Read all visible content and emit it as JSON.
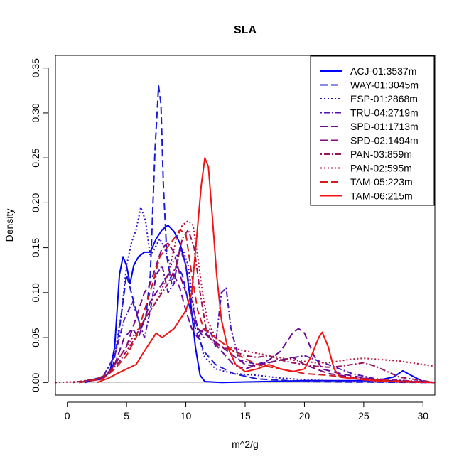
{
  "chart_data": {
    "type": "line",
    "title": "SLA",
    "xlabel": "m^2/g",
    "ylabel": "Density",
    "xlim": [
      -1,
      31
    ],
    "ylim": [
      -0.014,
      0.364
    ],
    "xticks": [
      "0",
      "5",
      "10",
      "15",
      "20",
      "25",
      "30"
    ],
    "yticks": [
      "0.00",
      "0.05",
      "0.10",
      "0.15",
      "0.20",
      "0.25",
      "0.30",
      "0.35"
    ],
    "legend_position": "top-right",
    "grid": false,
    "series": [
      {
        "name": "ACJ-01:3537m",
        "color": "#0000FF",
        "dash": "solid",
        "points": [
          [
            1,
            0
          ],
          [
            3,
            0.004
          ],
          [
            3.6,
            0.012
          ],
          [
            4.0,
            0.04
          ],
          [
            4.4,
            0.12
          ],
          [
            4.7,
            0.14
          ],
          [
            5.0,
            0.13
          ],
          [
            5.3,
            0.11
          ],
          [
            5.6,
            0.13
          ],
          [
            6.0,
            0.14
          ],
          [
            6.5,
            0.145
          ],
          [
            7.0,
            0.145
          ],
          [
            7.5,
            0.16
          ],
          [
            8.0,
            0.17
          ],
          [
            8.5,
            0.175
          ],
          [
            9.0,
            0.168
          ],
          [
            9.5,
            0.155
          ],
          [
            10.0,
            0.13
          ],
          [
            10.4,
            0.09
          ],
          [
            10.8,
            0.04
          ],
          [
            11.2,
            0.008
          ],
          [
            11.6,
            0.001
          ],
          [
            13,
            0.0
          ],
          [
            20,
            0.002
          ],
          [
            26,
            0.002
          ],
          [
            27.5,
            0.006
          ],
          [
            28.3,
            0.013
          ],
          [
            29,
            0.008
          ],
          [
            30,
            0.001
          ],
          [
            31,
            0
          ]
        ]
      },
      {
        "name": "WAY-01:3045m",
        "color": "#1A1ADD",
        "dash": "longdash",
        "points": [
          [
            1.5,
            0
          ],
          [
            3,
            0.005
          ],
          [
            3.8,
            0.015
          ],
          [
            4.3,
            0.05
          ],
          [
            4.7,
            0.09
          ],
          [
            5.0,
            0.12
          ],
          [
            5.4,
            0.1
          ],
          [
            5.8,
            0.08
          ],
          [
            6.2,
            0.06
          ],
          [
            6.6,
            0.07
          ],
          [
            7.0,
            0.12
          ],
          [
            7.4,
            0.26
          ],
          [
            7.7,
            0.33
          ],
          [
            7.9,
            0.31
          ],
          [
            8.1,
            0.22
          ],
          [
            8.4,
            0.14
          ],
          [
            8.8,
            0.11
          ],
          [
            9.2,
            0.13
          ],
          [
            9.7,
            0.12
          ],
          [
            10.2,
            0.09
          ],
          [
            10.8,
            0.06
          ],
          [
            11.5,
            0.035
          ],
          [
            12.5,
            0.02
          ],
          [
            14,
            0.01
          ],
          [
            16,
            0.004
          ],
          [
            20,
            0.001
          ],
          [
            24,
            0.0005
          ],
          [
            31,
            0
          ]
        ]
      },
      {
        "name": "ESP-01:2868m",
        "color": "#2E0FC8",
        "dash": "dotted",
        "points": [
          [
            1.5,
            0
          ],
          [
            3,
            0.006
          ],
          [
            4.0,
            0.03
          ],
          [
            4.6,
            0.08
          ],
          [
            5.0,
            0.13
          ],
          [
            5.4,
            0.155
          ],
          [
            5.8,
            0.17
          ],
          [
            6.2,
            0.195
          ],
          [
            6.6,
            0.18
          ],
          [
            7.0,
            0.14
          ],
          [
            7.4,
            0.15
          ],
          [
            7.8,
            0.16
          ],
          [
            8.2,
            0.15
          ],
          [
            8.7,
            0.13
          ],
          [
            9.2,
            0.14
          ],
          [
            9.7,
            0.15
          ],
          [
            10.2,
            0.13
          ],
          [
            10.8,
            0.07
          ],
          [
            11.5,
            0.03
          ],
          [
            12.5,
            0.015
          ],
          [
            14,
            0.01
          ],
          [
            16,
            0.008
          ],
          [
            18,
            0.005
          ],
          [
            20,
            0.003
          ],
          [
            24,
            0.001
          ],
          [
            31,
            0
          ]
        ]
      },
      {
        "name": "TRU-04:2719m",
        "color": "#5214B4",
        "dash": "dotdash",
        "points": [
          [
            1.0,
            0
          ],
          [
            3,
            0.006
          ],
          [
            4.0,
            0.03
          ],
          [
            4.8,
            0.07
          ],
          [
            5.5,
            0.09
          ],
          [
            6.0,
            0.07
          ],
          [
            6.5,
            0.05
          ],
          [
            7.0,
            0.08
          ],
          [
            7.5,
            0.12
          ],
          [
            8.0,
            0.13
          ],
          [
            8.5,
            0.1
          ],
          [
            9.0,
            0.11
          ],
          [
            9.5,
            0.15
          ],
          [
            10.0,
            0.13
          ],
          [
            10.5,
            0.09
          ],
          [
            11.0,
            0.06
          ],
          [
            11.5,
            0.05
          ],
          [
            12.0,
            0.06
          ],
          [
            12.5,
            0.04
          ],
          [
            13.0,
            0.1
          ],
          [
            13.4,
            0.105
          ],
          [
            13.8,
            0.06
          ],
          [
            14.5,
            0.025
          ],
          [
            16,
            0.02
          ],
          [
            18,
            0.025
          ],
          [
            20,
            0.03
          ],
          [
            22,
            0.02
          ],
          [
            24,
            0.01
          ],
          [
            26,
            0.004
          ],
          [
            31,
            0
          ]
        ]
      },
      {
        "name": "SPD-01:1713m",
        "color": "#6A0A96",
        "dash": "longdash",
        "points": [
          [
            1.0,
            0
          ],
          [
            3,
            0.004
          ],
          [
            4.0,
            0.02
          ],
          [
            4.8,
            0.05
          ],
          [
            5.5,
            0.06
          ],
          [
            6.0,
            0.05
          ],
          [
            6.5,
            0.07
          ],
          [
            7.0,
            0.09
          ],
          [
            7.5,
            0.1
          ],
          [
            8.0,
            0.11
          ],
          [
            8.5,
            0.12
          ],
          [
            9.0,
            0.12
          ],
          [
            9.5,
            0.105
          ],
          [
            10.0,
            0.08
          ],
          [
            10.5,
            0.06
          ],
          [
            11.0,
            0.05
          ],
          [
            11.5,
            0.06
          ],
          [
            12.0,
            0.05
          ],
          [
            13,
            0.035
          ],
          [
            14,
            0.02
          ],
          [
            15,
            0.015
          ],
          [
            16,
            0.02
          ],
          [
            17,
            0.025
          ],
          [
            18,
            0.035
          ],
          [
            19,
            0.055
          ],
          [
            19.5,
            0.06
          ],
          [
            20,
            0.055
          ],
          [
            20.8,
            0.03
          ],
          [
            21.5,
            0.015
          ],
          [
            23,
            0.01
          ],
          [
            25,
            0.005
          ],
          [
            27,
            0.002
          ],
          [
            31,
            0
          ]
        ]
      },
      {
        "name": "SPD-02:1494m",
        "color": "#7F0A7F",
        "dash": "longdash",
        "points": [
          [
            1.0,
            0
          ],
          [
            3,
            0.004
          ],
          [
            4.0,
            0.02
          ],
          [
            5.0,
            0.04
          ],
          [
            5.5,
            0.06
          ],
          [
            6.0,
            0.08
          ],
          [
            6.5,
            0.1
          ],
          [
            7.0,
            0.11
          ],
          [
            7.5,
            0.13
          ],
          [
            8.0,
            0.15
          ],
          [
            8.5,
            0.155
          ],
          [
            9.0,
            0.145
          ],
          [
            9.5,
            0.12
          ],
          [
            10.0,
            0.1
          ],
          [
            10.5,
            0.075
          ],
          [
            11.0,
            0.06
          ],
          [
            11.5,
            0.055
          ],
          [
            12.0,
            0.05
          ],
          [
            13,
            0.04
          ],
          [
            14,
            0.03
          ],
          [
            15,
            0.02
          ],
          [
            16,
            0.018
          ],
          [
            17,
            0.022
          ],
          [
            18,
            0.025
          ],
          [
            19,
            0.028
          ],
          [
            20,
            0.02
          ],
          [
            21,
            0.015
          ],
          [
            22,
            0.01
          ],
          [
            24,
            0.006
          ],
          [
            26,
            0.003
          ],
          [
            31,
            0
          ]
        ]
      },
      {
        "name": "PAN-03:859m",
        "color": "#99145A",
        "dash": "dotdash",
        "points": [
          [
            0.5,
            0
          ],
          [
            2.5,
            0.004
          ],
          [
            3.5,
            0.01
          ],
          [
            4.5,
            0.025
          ],
          [
            5.5,
            0.045
          ],
          [
            6.5,
            0.07
          ],
          [
            7.5,
            0.09
          ],
          [
            8.5,
            0.11
          ],
          [
            9.2,
            0.13
          ],
          [
            9.7,
            0.16
          ],
          [
            10.2,
            0.17
          ],
          [
            10.7,
            0.15
          ],
          [
            11.2,
            0.1
          ],
          [
            11.7,
            0.06
          ],
          [
            12.2,
            0.045
          ],
          [
            13,
            0.04
          ],
          [
            14,
            0.035
          ],
          [
            15,
            0.03
          ],
          [
            16,
            0.028
          ],
          [
            17,
            0.03
          ],
          [
            18,
            0.025
          ],
          [
            19,
            0.022
          ],
          [
            20,
            0.02
          ],
          [
            21,
            0.018
          ],
          [
            22,
            0.017
          ],
          [
            23,
            0.018
          ],
          [
            24,
            0.02
          ],
          [
            25,
            0.022
          ],
          [
            26,
            0.018
          ],
          [
            27,
            0.012
          ],
          [
            28,
            0.006
          ],
          [
            30,
            0.002
          ],
          [
            31,
            0
          ]
        ]
      },
      {
        "name": "PAN-02:595m",
        "color": "#B4143C",
        "dash": "dotted",
        "points": [
          [
            -1,
            0
          ],
          [
            1,
            0.001
          ],
          [
            2.5,
            0.004
          ],
          [
            3.5,
            0.01
          ],
          [
            4.5,
            0.03
          ],
          [
            5.5,
            0.05
          ],
          [
            6.5,
            0.07
          ],
          [
            7.5,
            0.09
          ],
          [
            8.5,
            0.12
          ],
          [
            9.2,
            0.16
          ],
          [
            9.7,
            0.175
          ],
          [
            10.2,
            0.18
          ],
          [
            10.6,
            0.175
          ],
          [
            11.0,
            0.14
          ],
          [
            11.4,
            0.1
          ],
          [
            11.8,
            0.07
          ],
          [
            12.5,
            0.05
          ],
          [
            13.5,
            0.04
          ],
          [
            15,
            0.035
          ],
          [
            17,
            0.03
          ],
          [
            19,
            0.025
          ],
          [
            21,
            0.022
          ],
          [
            22,
            0.022
          ],
          [
            23,
            0.024
          ],
          [
            24,
            0.026
          ],
          [
            25,
            0.027
          ],
          [
            26,
            0.026
          ],
          [
            27,
            0.025
          ],
          [
            28,
            0.024
          ],
          [
            29,
            0.022
          ],
          [
            30,
            0.02
          ],
          [
            31,
            0.018
          ]
        ]
      },
      {
        "name": "TAM-05:223m",
        "color": "#D21E1E",
        "dash": "longdash",
        "points": [
          [
            1.0,
            0
          ],
          [
            3,
            0.004
          ],
          [
            4.0,
            0.015
          ],
          [
            5.0,
            0.03
          ],
          [
            5.8,
            0.05
          ],
          [
            6.5,
            0.08
          ],
          [
            7.2,
            0.11
          ],
          [
            7.8,
            0.14
          ],
          [
            8.4,
            0.15
          ],
          [
            9.0,
            0.16
          ],
          [
            9.5,
            0.17
          ],
          [
            10.0,
            0.165
          ],
          [
            10.5,
            0.12
          ],
          [
            11.0,
            0.08
          ],
          [
            11.5,
            0.06
          ],
          [
            12.0,
            0.055
          ],
          [
            12.5,
            0.05
          ],
          [
            13.5,
            0.04
          ],
          [
            14.5,
            0.03
          ],
          [
            16,
            0.02
          ],
          [
            18,
            0.015
          ],
          [
            20,
            0.01
          ],
          [
            22,
            0.008
          ],
          [
            24,
            0.005
          ],
          [
            26,
            0.003
          ],
          [
            31,
            0
          ]
        ]
      },
      {
        "name": "TAM-06:215m",
        "color": "#F01414",
        "dash": "solid",
        "points": [
          [
            2.5,
            0
          ],
          [
            3.5,
            0.005
          ],
          [
            4.2,
            0.01
          ],
          [
            5.0,
            0.015
          ],
          [
            5.8,
            0.02
          ],
          [
            6.5,
            0.035
          ],
          [
            7.0,
            0.045
          ],
          [
            7.5,
            0.055
          ],
          [
            8.0,
            0.05
          ],
          [
            8.5,
            0.055
          ],
          [
            9.0,
            0.06
          ],
          [
            9.5,
            0.07
          ],
          [
            10.0,
            0.08
          ],
          [
            10.5,
            0.1
          ],
          [
            10.9,
            0.16
          ],
          [
            11.3,
            0.22
          ],
          [
            11.6,
            0.25
          ],
          [
            11.9,
            0.24
          ],
          [
            12.2,
            0.19
          ],
          [
            12.6,
            0.12
          ],
          [
            13.0,
            0.07
          ],
          [
            13.5,
            0.04
          ],
          [
            14.2,
            0.02
          ],
          [
            15,
            0.012
          ],
          [
            16,
            0.015
          ],
          [
            17,
            0.02
          ],
          [
            18,
            0.015
          ],
          [
            19,
            0.012
          ],
          [
            20,
            0.015
          ],
          [
            20.6,
            0.03
          ],
          [
            21.2,
            0.05
          ],
          [
            21.5,
            0.056
          ],
          [
            22.0,
            0.04
          ],
          [
            22.5,
            0.015
          ],
          [
            23,
            0.006
          ],
          [
            25,
            0.003
          ],
          [
            27,
            0.001
          ],
          [
            31,
            0
          ]
        ]
      }
    ]
  }
}
